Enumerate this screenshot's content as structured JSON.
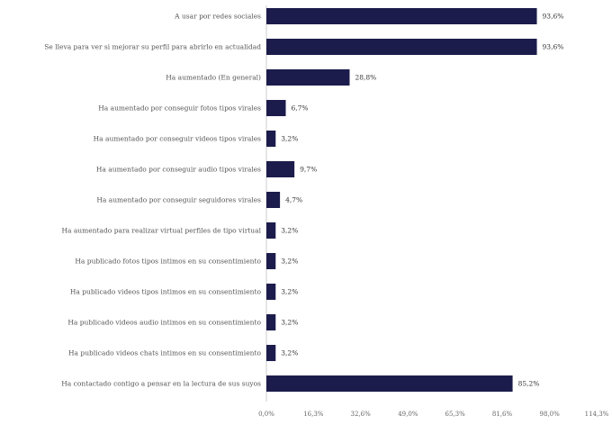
{
  "chart_data": {
    "type": "bar",
    "orientation": "horizontal",
    "bar_color": "#1c1c4c",
    "title": "",
    "xlabel": "",
    "ylabel": "",
    "categories": [
      "A usar por redes sociales",
      "Se lleva para ver si mejorar su perfil para abrirlo en actualidad",
      "Ha aumentado (En general)",
      "Ha aumentado por conseguir fotos tipos virales",
      "Ha aumentado por conseguir videos tipos virales",
      "Ha aumentado por conseguir audio tipos virales",
      "Ha aumentado por conseguir seguidores virales",
      "Ha aumentado para realizar virtual perfiles de tipo virtual",
      "Ha publicado fotos tipos intimos en su consentimiento",
      "Ha publicado videos tipos intimos en su consentimiento",
      "Ha publicado videos audio intimos en su consentimiento",
      "Ha publicado videos chats intimos en su consentimiento",
      "Ha contactado contigo a pensar en la lectura de sus suyos"
    ],
    "values": [
      93.6,
      93.6,
      28.8,
      6.7,
      3.2,
      9.7,
      4.7,
      3.2,
      3.2,
      3.2,
      3.2,
      3.2,
      85.2
    ],
    "value_labels": [
      "93,6%",
      "93,6%",
      "28,8%",
      "6,7%",
      "3,2%",
      "9,7%",
      "4,7%",
      "3,2%",
      "3,2%",
      "3,2%",
      "3,2%",
      "3,2%",
      "85,2%"
    ],
    "xlim": [
      0,
      114.3
    ],
    "x_ticks": [
      0,
      16.3,
      32.6,
      49,
      65.3,
      81.6,
      98,
      114.3
    ],
    "x_tick_labels": [
      "0,0%",
      "16,3%",
      "32,6%",
      "49,0%",
      "65,3%",
      "81,6%",
      "98,0%",
      "114,3%"
    ],
    "grid": false,
    "legend": "none"
  }
}
